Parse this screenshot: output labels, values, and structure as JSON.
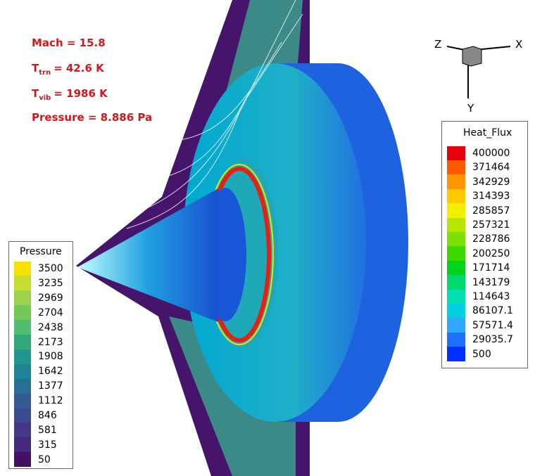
{
  "annotations": [
    {
      "text": "Mach = 15.8"
    },
    {
      "symbol": "T",
      "subscript": "trn",
      "text": "= 42.6 K"
    },
    {
      "symbol": "T",
      "subscript": "vib",
      "text": "= 1986 K"
    },
    {
      "text": "Pressure = 8.886 Pa"
    }
  ],
  "pressure_legend": {
    "title": "Pressure",
    "levels": [
      {
        "label": "3500",
        "color": "#f5e000"
      },
      {
        "label": "3235",
        "color": "#c8dc32"
      },
      {
        "label": "2969",
        "color": "#9ed250"
      },
      {
        "label": "2704",
        "color": "#74c85a"
      },
      {
        "label": "2438",
        "color": "#50be6e"
      },
      {
        "label": "2173",
        "color": "#32a87a"
      },
      {
        "label": "1908",
        "color": "#22968a"
      },
      {
        "label": "1642",
        "color": "#1e8496"
      },
      {
        "label": "1377",
        "color": "#286e96"
      },
      {
        "label": "1112",
        "color": "#345a94"
      },
      {
        "label": "846",
        "color": "#3c4a90"
      },
      {
        "label": "581",
        "color": "#44378a"
      },
      {
        "label": "315",
        "color": "#462880"
      },
      {
        "label": "50",
        "color": "#441060"
      }
    ]
  },
  "heat_flux_legend": {
    "title": "Heat_Flux",
    "levels": [
      {
        "label": "400000",
        "color": "#e8000b"
      },
      {
        "label": "371464",
        "color": "#ff5a00"
      },
      {
        "label": "342929",
        "color": "#ff9600"
      },
      {
        "label": "314393",
        "color": "#ffc800"
      },
      {
        "label": "285857",
        "color": "#f0f000"
      },
      {
        "label": "257321",
        "color": "#b8e400"
      },
      {
        "label": "228786",
        "color": "#7ce000"
      },
      {
        "label": "200250",
        "color": "#3cd800"
      },
      {
        "label": "171714",
        "color": "#00d21e"
      },
      {
        "label": "143179",
        "color": "#00d870"
      },
      {
        "label": "114643",
        "color": "#00e0b0"
      },
      {
        "label": "86107.1",
        "color": "#00d0e0"
      },
      {
        "label": "57571.4",
        "color": "#30a8ff"
      },
      {
        "label": "29035.7",
        "color": "#2070ff"
      },
      {
        "label": "500",
        "color": "#0030ff"
      }
    ]
  },
  "axes_triad": {
    "z": "Z",
    "x": "X",
    "y": "Y"
  }
}
